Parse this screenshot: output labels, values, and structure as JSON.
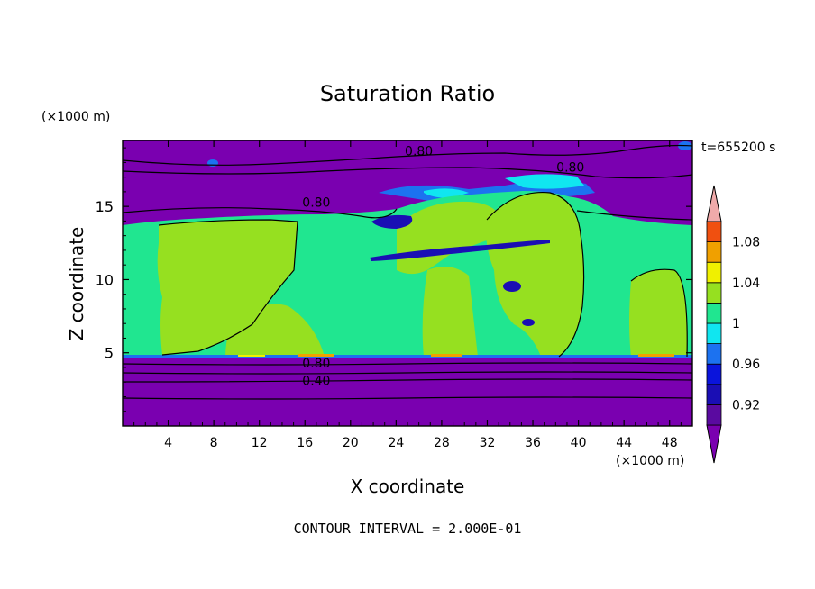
{
  "chart_data": {
    "type": "heatmap",
    "title": "Saturation Ratio",
    "xlabel": "X coordinate",
    "ylabel": "Z coordinate",
    "x_unit": "(×1000 m)",
    "y_unit": "(×1000 m)",
    "time_label": "t=655200 s",
    "footer": "CONTOUR INTERVAL = 2.000E-01",
    "xlim": [
      0,
      50
    ],
    "ylim": [
      0,
      19.5
    ],
    "x_ticks": [
      "4",
      "8",
      "12",
      "16",
      "20",
      "24",
      "28",
      "32",
      "36",
      "40",
      "44",
      "48"
    ],
    "y_ticks": [
      "5",
      "10",
      "15"
    ],
    "colorbar": {
      "labels": [
        "0.92",
        "0.96",
        "1",
        "1.04",
        "1.08"
      ],
      "levels": [
        0.9,
        0.92,
        0.94,
        0.96,
        0.98,
        1.0,
        1.02,
        1.04,
        1.06,
        1.08,
        1.1
      ],
      "colors": [
        "#5a0aa0",
        "#1a0eb4",
        "#0a14dc",
        "#1c72f0",
        "#10e6f0",
        "#20e690",
        "#96e020",
        "#f0f000",
        "#f0a000",
        "#f05010",
        "#f02020",
        "#f0aaaa"
      ],
      "under_color": "#7a00b0",
      "over_color": "#f0aaaa"
    },
    "contour_labels": [
      {
        "text": "0.80",
        "x": 26,
        "z": 18.8
      },
      {
        "text": "0.80",
        "x": 39.3,
        "z": 17.7
      },
      {
        "text": "0.80",
        "x": 17,
        "z": 15.3
      },
      {
        "text": "0.80",
        "x": 17,
        "z": 4.3
      },
      {
        "text": "0.40",
        "x": 17,
        "z": 3.1
      }
    ]
  }
}
